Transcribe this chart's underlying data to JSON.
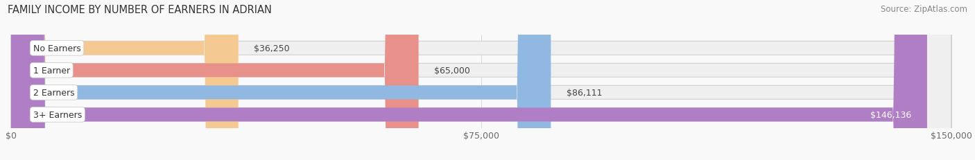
{
  "title": "FAMILY INCOME BY NUMBER OF EARNERS IN ADRIAN",
  "source": "Source: ZipAtlas.com",
  "categories": [
    "No Earners",
    "1 Earner",
    "2 Earners",
    "3+ Earners"
  ],
  "values": [
    36250,
    65000,
    86111,
    146136
  ],
  "labels": [
    "$36,250",
    "$65,000",
    "$86,111",
    "$146,136"
  ],
  "bar_colors": [
    "#f5c992",
    "#e8918a",
    "#90b8e0",
    "#b07ec4"
  ],
  "bar_bg_color": "#efefef",
  "xmax": 150000,
  "xticks": [
    0,
    75000,
    150000
  ],
  "xtick_labels": [
    "$0",
    "$75,000",
    "$150,000"
  ],
  "title_fontsize": 10.5,
  "source_fontsize": 8.5,
  "bar_label_fontsize": 9,
  "category_fontsize": 9,
  "tick_fontsize": 9,
  "figure_bg": "#f9f9f9",
  "axes_bg": "#f9f9f9",
  "bar_height": 0.62,
  "bar_spacing": 1.0
}
